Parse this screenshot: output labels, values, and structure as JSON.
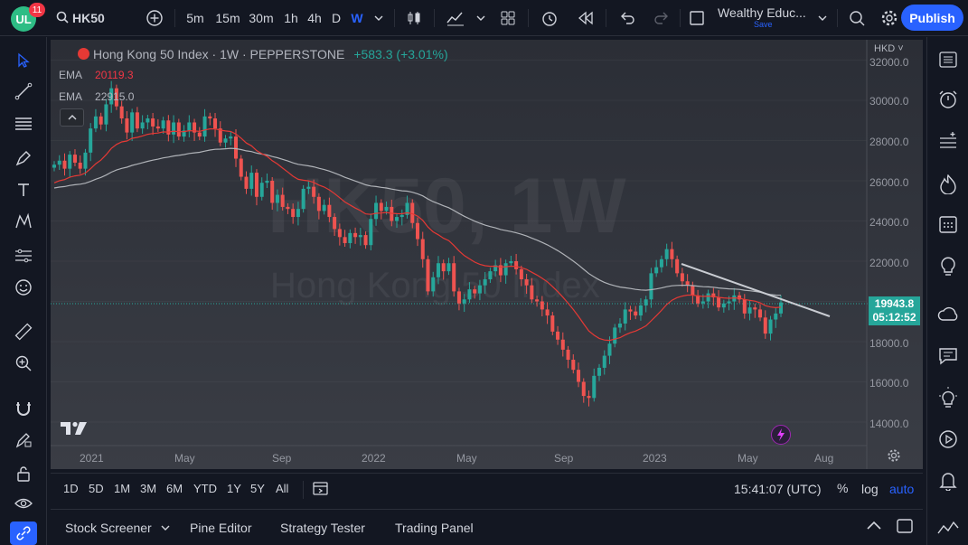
{
  "header": {
    "badge_count": "11",
    "logo_text": "UL",
    "symbol": "HK50",
    "intervals": [
      "5m",
      "15m",
      "30m",
      "1h",
      "4h",
      "D",
      "W"
    ],
    "active_interval": "W",
    "layout_name": "Wealthy Educ...",
    "layout_save": "Save",
    "publish_label": "Publish"
  },
  "legend": {
    "title": "Hong Kong 50 Index · 1W · PEPPERSTONE",
    "change": "+583.3 (+3.01%)",
    "ema1_label": "EMA",
    "ema1_value": "20119.3",
    "ema2_label": "EMA",
    "ema2_value": "22915.0"
  },
  "watermark": {
    "line1": "HK50, 1W",
    "line2": "Hong Kong 50 Index"
  },
  "price_axis": {
    "currency": "HKD",
    "labels": [
      "32000.0",
      "30000.0",
      "28000.0",
      "26000.0",
      "24000.0",
      "22000.0",
      "18000.0",
      "16000.0",
      "14000.0"
    ],
    "last_price": "19943.8",
    "countdown": "05:12:52"
  },
  "time_axis": {
    "labels": [
      "2021",
      "May",
      "Sep",
      "2022",
      "May",
      "Sep",
      "2023",
      "May",
      "Aug"
    ]
  },
  "ranges": [
    "1D",
    "5D",
    "1M",
    "3M",
    "6M",
    "YTD",
    "1Y",
    "5Y",
    "All"
  ],
  "footer": {
    "clock": "15:41:07 (UTC)",
    "percent": "%",
    "log": "log",
    "auto": "auto"
  },
  "bottom_tabs": [
    "Stock Screener",
    "Pine Editor",
    "Strategy Tester",
    "Trading Panel"
  ],
  "colors": {
    "up": "#26a69a",
    "down": "#ef5350",
    "ema_fast": "#e53935",
    "ema_slow": "#b0b3b8",
    "accent": "#2962ff"
  },
  "chart_data": {
    "type": "candlestick",
    "symbol": "HK50",
    "timeframe": "1W",
    "ylim": [
      13000,
      32500
    ],
    "x_ticks": [
      "2021",
      "May",
      "Sep",
      "2022",
      "May",
      "Sep",
      "2023",
      "May",
      "Aug"
    ],
    "last_price": 19943.8,
    "ema_fast_last": 20119.3,
    "ema_slow_last": 22915.0,
    "trendline": [
      [
        21800,
        19250
      ]
    ],
    "closes": [
      26800,
      27000,
      26600,
      27300,
      26900,
      26600,
      27400,
      28600,
      29200,
      28800,
      29800,
      30600,
      29700,
      29100,
      28400,
      29400,
      28600,
      28900,
      29100,
      28700,
      28600,
      29000,
      28300,
      28900,
      28200,
      28500,
      28900,
      28400,
      28200,
      29200,
      29100,
      28600,
      27900,
      28100,
      28200,
      27100,
      26200,
      25600,
      26400,
      25200,
      25900,
      26000,
      24900,
      25300,
      24700,
      24600,
      24200,
      24600,
      25600,
      25700,
      25200,
      24500,
      24800,
      24200,
      23600,
      23200,
      22900,
      23400,
      23200,
      23300,
      22800,
      24100,
      24900,
      24500,
      24700,
      24000,
      24200,
      24300,
      24900,
      23900,
      23100,
      22100,
      20500,
      21200,
      21900,
      21500,
      21900,
      20500,
      19900,
      20100,
      20600,
      20400,
      20800,
      21100,
      21500,
      21800,
      21300,
      21900,
      22000,
      21600,
      21100,
      20800,
      20100,
      20000,
      19600,
      19300,
      18500,
      18100,
      17600,
      17100,
      16600,
      16000,
      15300,
      15200,
      16300,
      16700,
      17300,
      17900,
      18700,
      18900,
      19600,
      19500,
      19300,
      19800,
      20100,
      21400,
      21700,
      22100,
      22600,
      22100,
      21400,
      21000,
      20800,
      20300,
      19900,
      20000,
      20400,
      20200,
      19700,
      19900,
      20000,
      20300,
      20100,
      19400,
      19700,
      19600,
      19200,
      18400,
      19100,
      19400,
      19950
    ]
  }
}
